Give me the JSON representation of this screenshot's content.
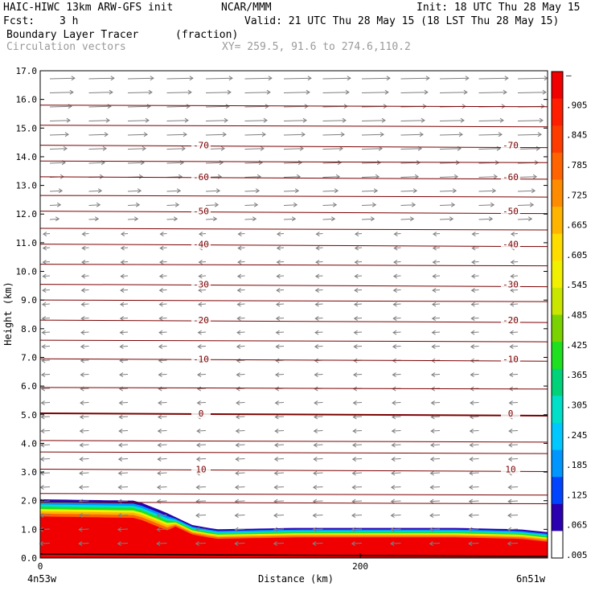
{
  "header": {
    "model": "HAIC-HIWC 13km ARW-GFS init",
    "org": "NCAR/MMM",
    "init": "Init: 18 UTC Thu 28 May 15",
    "fcst_label": "Fcst:",
    "fcst_value": "3 h",
    "valid": "Valid: 21 UTC Thu 28 May 15 (18 LST Thu 28 May 15)",
    "field": "Boundary Layer Tracer",
    "field_units": "(fraction)",
    "vectors": "Circulation vectors",
    "xy": "XY= 259.5, 91.6 to 274.6,110.2"
  },
  "colors": {
    "contour": "#7a0000",
    "vector": "#7f7f7f",
    "colorbar": [
      "#ffffff",
      "#2a00b0",
      "#0044ff",
      "#0096ff",
      "#00c8ff",
      "#00e0c8",
      "#00d27a",
      "#1ee01e",
      "#7ad200",
      "#c8e600",
      "#f0f000",
      "#ffdc00",
      "#ffb400",
      "#ff8c00",
      "#ff6400",
      "#ff3c00",
      "#ff1e00",
      "#f00000"
    ]
  },
  "chart_data": {
    "type": "heatmap",
    "xlabel": "Distance (km)",
    "ylabel": "Height (km)",
    "xlim": [
      0,
      317
    ],
    "ylim": [
      0.0,
      17.0
    ],
    "x_tick_labels": [
      "0",
      "200"
    ],
    "x_ticks": [
      0,
      200
    ],
    "x_end_labels": {
      "left": "4n53w",
      "right": "6n51w"
    },
    "y_ticks": [
      "0.0",
      "1.0",
      "2.0",
      "3.0",
      "4.0",
      "5.0",
      "6.0",
      "7.0",
      "8.0",
      "9.0",
      "10.0",
      "11.0",
      "12.0",
      "13.0",
      "14.0",
      "15.0",
      "16.0",
      "17.0"
    ],
    "colorbar": {
      "labels": [
        ".005",
        ".065",
        ".125",
        ".185",
        ".245",
        ".305",
        ".365",
        ".425",
        ".485",
        ".545",
        ".605",
        ".665",
        ".725",
        ".785",
        ".845",
        ".905",
        "–"
      ]
    },
    "temperature_contours": [
      {
        "level": "10",
        "y": 3.1
      },
      {
        "level": "0",
        "y": 5.05
      },
      {
        "level": "-10",
        "y": 6.95
      },
      {
        "level": "-20",
        "y": 8.3
      },
      {
        "level": "-30",
        "y": 9.55
      },
      {
        "level": "-40",
        "y": 10.95
      },
      {
        "level": "-50",
        "y": 12.1
      },
      {
        "level": "-60",
        "y": 13.3
      },
      {
        "level": "-70",
        "y": 14.4
      }
    ],
    "boundary_layer_top": [
      {
        "x": 0,
        "y": 2.05
      },
      {
        "x": 60,
        "y": 2.0
      },
      {
        "x": 78,
        "y": 1.6
      },
      {
        "x": 95,
        "y": 1.15
      },
      {
        "x": 110,
        "y": 1.0
      },
      {
        "x": 160,
        "y": 1.05
      },
      {
        "x": 260,
        "y": 1.05
      },
      {
        "x": 300,
        "y": 1.0
      },
      {
        "x": 317,
        "y": 0.9
      }
    ]
  }
}
